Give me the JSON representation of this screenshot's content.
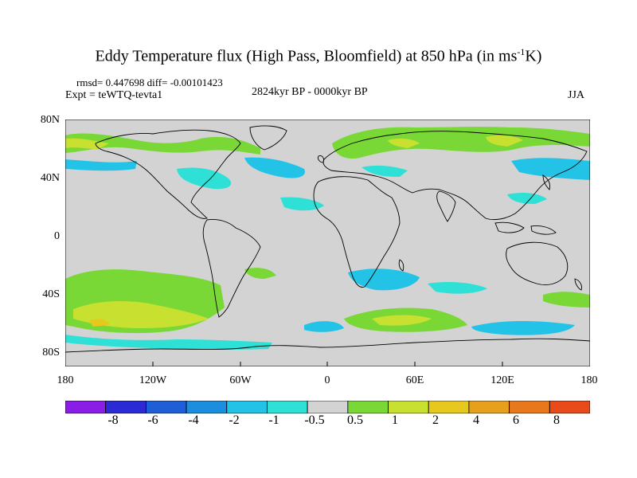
{
  "title": {
    "main": "Eddy Temperature flux (High Pass, Bloomfield) at 850 hPa (in ms",
    "sup": "-1",
    "tail": "K)"
  },
  "stats": {
    "rmsd": "rmsd= 0.447698 diff= -0.00101423"
  },
  "experiment": "Expt = teWTQ-tevta1",
  "period": "2824kyr BP - 0000kyr BP",
  "season": "JJA",
  "axes": {
    "y_ticks": [
      "80N",
      "40N",
      "0",
      "40S",
      "80S"
    ],
    "x_ticks": [
      "180",
      "120W",
      "60W",
      "0",
      "60E",
      "120E",
      "180"
    ]
  },
  "colorbar": {
    "labels": [
      "-8",
      "-6",
      "-4",
      "-2",
      "-1",
      "-0.5",
      "0.5",
      "1",
      "2",
      "4",
      "6",
      "8"
    ],
    "colors": [
      "#8a1ee6",
      "#2c2ad6",
      "#1e5fd8",
      "#1b8ee0",
      "#22c3e6",
      "#2ee0d6",
      "#d3d3d3",
      "#7ad836",
      "#c8e030",
      "#e6c81e",
      "#e6a01e",
      "#e8781c",
      "#e84a1a"
    ]
  },
  "palette": {
    "neutral": "#d3d3d3",
    "land_outline": "#000000"
  }
}
